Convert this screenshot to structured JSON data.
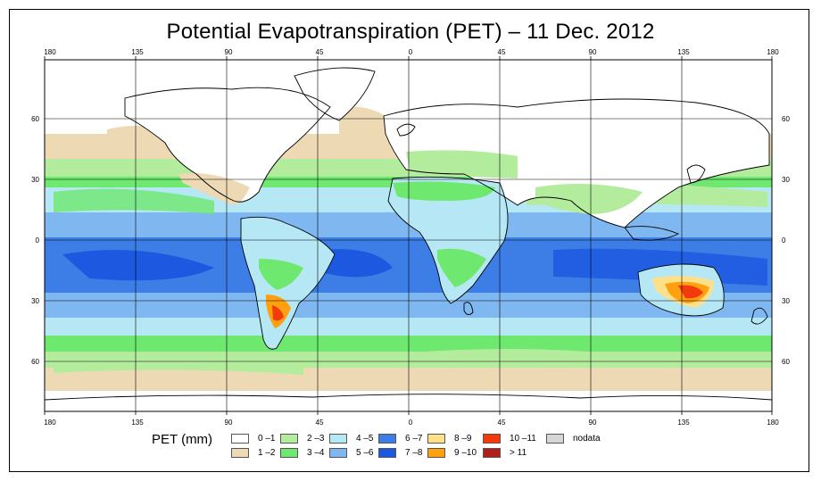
{
  "title": "Potential Evapotranspiration (PET) – 11 Dec. 2012",
  "axes": {
    "lon_labels": [
      "180",
      "135",
      "90",
      "45",
      "0",
      "45",
      "90",
      "135",
      "180"
    ],
    "lat_labels": [
      "60",
      "30",
      "0",
      "30",
      "60"
    ]
  },
  "legend": {
    "label": "PET (mm)",
    "items": [
      {
        "text": "0 –1",
        "color": "#ffffff"
      },
      {
        "text": "1 –2",
        "color": "#eed9b5"
      },
      {
        "text": "2 –3",
        "color": "#b4ec9d"
      },
      {
        "text": "3 –4",
        "color": "#6ee86e"
      },
      {
        "text": "4 –5",
        "color": "#b5e7f5"
      },
      {
        "text": "5 –6",
        "color": "#7fb7f0"
      },
      {
        "text": "6 –7",
        "color": "#3d7ee6"
      },
      {
        "text": "7 –8",
        "color": "#1c58e0"
      },
      {
        "text": "8 –9",
        "color": "#ffe08a"
      },
      {
        "text": "9 –10",
        "color": "#ffa010"
      },
      {
        "text": "10 –11",
        "color": "#f23a0a"
      },
      {
        "text": "> 11",
        "color": "#b0201a"
      },
      {
        "text": "nodata",
        "color": "#d6d6d6"
      }
    ]
  }
}
